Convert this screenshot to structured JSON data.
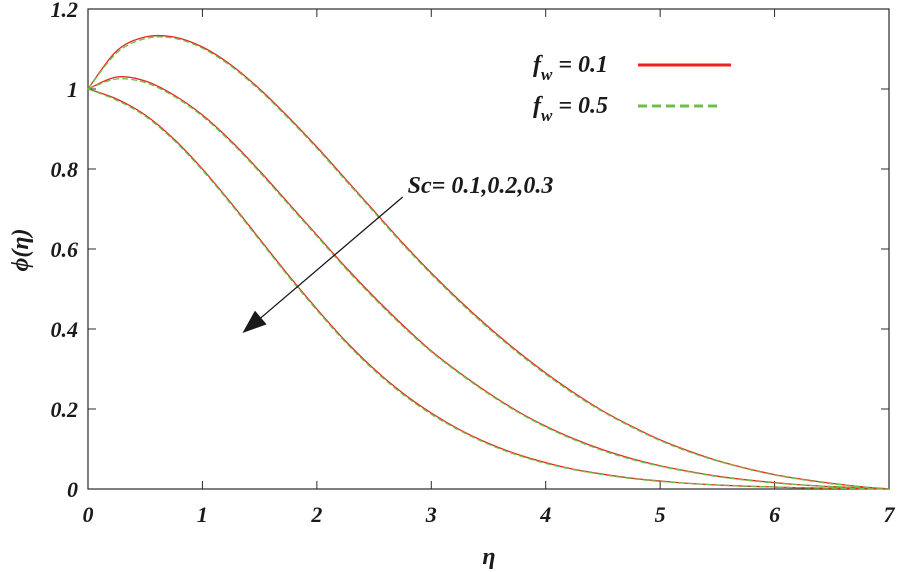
{
  "chart_data": {
    "type": "line",
    "title": "",
    "xlabel": "η",
    "ylabel": "ϕ(η)",
    "xlim": [
      0,
      7
    ],
    "ylim": [
      0,
      1.2
    ],
    "xticks": [
      "0",
      "1",
      "2",
      "3",
      "4",
      "5",
      "6",
      "7"
    ],
    "yticks": [
      "0",
      "0.2",
      "0.4",
      "0.6",
      "0.8",
      "1",
      "1.2"
    ],
    "grid": false,
    "legend_position": "top-right",
    "legend": [
      {
        "main": "f",
        "sub": "w",
        "rest": " = 0.1",
        "color": "#e8251f",
        "dash": "solid"
      },
      {
        "main": "f",
        "sub": "w",
        "rest": " = 0.5",
        "color": "#6cc04a",
        "dash": "dashed"
      }
    ],
    "annotation": {
      "text": "Sc= 0.1,0.2,0.3",
      "arrow_from": [
        2.75,
        0.73
      ],
      "arrow_to": [
        1.35,
        0.39
      ]
    },
    "x": [
      0,
      0.25,
      0.5,
      0.75,
      1,
      1.25,
      1.5,
      1.75,
      2,
      2.25,
      2.5,
      2.75,
      3,
      3.25,
      3.5,
      3.75,
      4,
      4.25,
      4.5,
      4.75,
      5,
      5.25,
      5.5,
      5.75,
      6,
      6.25,
      6.5,
      6.75,
      7
    ],
    "series": [
      {
        "name": "f_w = 0.1, Sc = 0.1",
        "color": "#e8251f",
        "dash": "solid",
        "values": [
          1.0,
          1.095,
          1.13,
          1.13,
          1.105,
          1.06,
          1.0,
          0.93,
          0.855,
          0.775,
          0.695,
          0.615,
          0.54,
          0.47,
          0.405,
          0.345,
          0.29,
          0.24,
          0.195,
          0.157,
          0.123,
          0.095,
          0.071,
          0.052,
          0.036,
          0.024,
          0.014,
          0.006,
          0.0
        ]
      },
      {
        "name": "f_w = 0.5, Sc = 0.1",
        "color": "#6cc04a",
        "dash": "dashed",
        "values": [
          1.0,
          1.09,
          1.126,
          1.127,
          1.102,
          1.057,
          0.997,
          0.927,
          0.852,
          0.772,
          0.692,
          0.612,
          0.537,
          0.467,
          0.402,
          0.342,
          0.287,
          0.237,
          0.193,
          0.155,
          0.121,
          0.093,
          0.07,
          0.051,
          0.035,
          0.023,
          0.013,
          0.006,
          0.0
        ]
      },
      {
        "name": "f_w = 0.1, Sc = 0.2",
        "color": "#e8251f",
        "dash": "solid",
        "values": [
          1.0,
          1.03,
          1.02,
          0.985,
          0.935,
          0.87,
          0.795,
          0.715,
          0.635,
          0.555,
          0.48,
          0.41,
          0.345,
          0.29,
          0.24,
          0.195,
          0.157,
          0.125,
          0.098,
          0.076,
          0.058,
          0.044,
          0.032,
          0.023,
          0.016,
          0.01,
          0.006,
          0.003,
          0.0
        ]
      },
      {
        "name": "f_w = 0.5, Sc = 0.2",
        "color": "#6cc04a",
        "dash": "dashed",
        "values": [
          1.0,
          1.025,
          1.016,
          0.982,
          0.932,
          0.867,
          0.792,
          0.712,
          0.632,
          0.552,
          0.477,
          0.407,
          0.343,
          0.288,
          0.238,
          0.193,
          0.155,
          0.123,
          0.096,
          0.074,
          0.057,
          0.043,
          0.031,
          0.022,
          0.015,
          0.01,
          0.006,
          0.003,
          0.0
        ]
      },
      {
        "name": "f_w = 0.1, Sc = 0.3",
        "color": "#e8251f",
        "dash": "solid",
        "values": [
          1.0,
          0.975,
          0.935,
          0.875,
          0.8,
          0.715,
          0.625,
          0.535,
          0.45,
          0.37,
          0.3,
          0.24,
          0.19,
          0.148,
          0.114,
          0.087,
          0.066,
          0.049,
          0.037,
          0.027,
          0.02,
          0.014,
          0.01,
          0.007,
          0.005,
          0.003,
          0.002,
          0.001,
          0.0
        ]
      },
      {
        "name": "f_w = 0.5, Sc = 0.3",
        "color": "#6cc04a",
        "dash": "dashed",
        "values": [
          1.0,
          0.972,
          0.932,
          0.872,
          0.797,
          0.712,
          0.622,
          0.532,
          0.447,
          0.367,
          0.297,
          0.237,
          0.187,
          0.146,
          0.112,
          0.085,
          0.064,
          0.048,
          0.036,
          0.026,
          0.019,
          0.014,
          0.01,
          0.007,
          0.005,
          0.003,
          0.002,
          0.001,
          0.0
        ]
      }
    ]
  }
}
